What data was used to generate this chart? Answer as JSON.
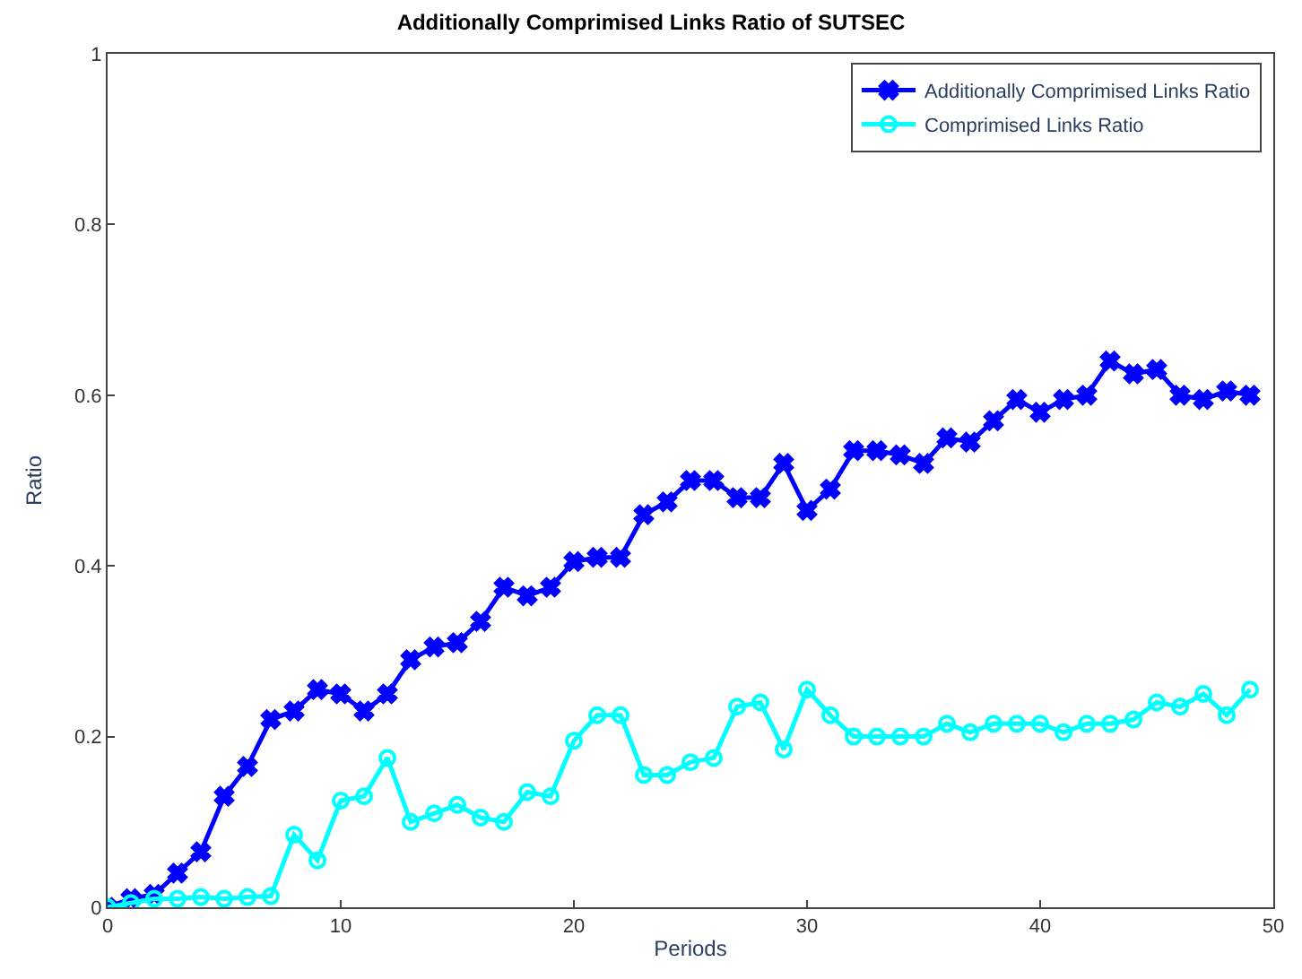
{
  "chart_data": {
    "type": "line",
    "title": "Additionally Comprimised Links Ratio of SUTSEC",
    "xlabel": "Periods",
    "ylabel": "Ratio",
    "x": [
      0,
      1,
      2,
      3,
      4,
      5,
      6,
      7,
      8,
      9,
      10,
      11,
      12,
      13,
      14,
      15,
      16,
      17,
      18,
      19,
      20,
      21,
      22,
      23,
      24,
      25,
      26,
      27,
      28,
      29,
      30,
      31,
      32,
      33,
      34,
      35,
      36,
      37,
      38,
      39,
      40,
      41,
      42,
      43,
      44,
      45,
      46,
      47,
      48,
      49
    ],
    "series": [
      {
        "name": "Additionally Comprimised Links Ratio",
        "color": "#0000ff",
        "marker": "cross",
        "values": [
          0,
          0.01,
          0.015,
          0.04,
          0.065,
          0.13,
          0.165,
          0.22,
          0.23,
          0.255,
          0.25,
          0.23,
          0.25,
          0.29,
          0.305,
          0.31,
          0.335,
          0.375,
          0.365,
          0.375,
          0.405,
          0.41,
          0.41,
          0.46,
          0.475,
          0.5,
          0.5,
          0.48,
          0.48,
          0.52,
          0.465,
          0.49,
          0.535,
          0.535,
          0.53,
          0.52,
          0.55,
          0.545,
          0.57,
          0.595,
          0.58,
          0.595,
          0.6,
          0.64,
          0.625,
          0.63,
          0.6,
          0.595,
          0.605,
          0.6
        ]
      },
      {
        "name": "Comprimised Links Ratio",
        "color": "#00ffff",
        "marker": "circle",
        "values": [
          0,
          0.005,
          0.01,
          0.01,
          0.012,
          0.01,
          0.012,
          0.013,
          0.085,
          0.055,
          0.125,
          0.13,
          0.175,
          0.1,
          0.11,
          0.12,
          0.105,
          0.1,
          0.135,
          0.13,
          0.195,
          0.225,
          0.225,
          0.155,
          0.155,
          0.17,
          0.175,
          0.235,
          0.24,
          0.185,
          0.255,
          0.225,
          0.2,
          0.2,
          0.2,
          0.2,
          0.215,
          0.205,
          0.215,
          0.215,
          0.215,
          0.205,
          0.215,
          0.215,
          0.22,
          0.24,
          0.235,
          0.25,
          0.225,
          0.255
        ]
      }
    ],
    "xlim": [
      0,
      50
    ],
    "xticks": [
      0,
      10,
      20,
      30,
      40,
      50
    ],
    "ylim": [
      0,
      1
    ],
    "yticks": [
      0,
      0.2,
      0.4,
      0.6,
      0.8,
      1
    ],
    "legend": "top right",
    "line_style": "solid"
  }
}
